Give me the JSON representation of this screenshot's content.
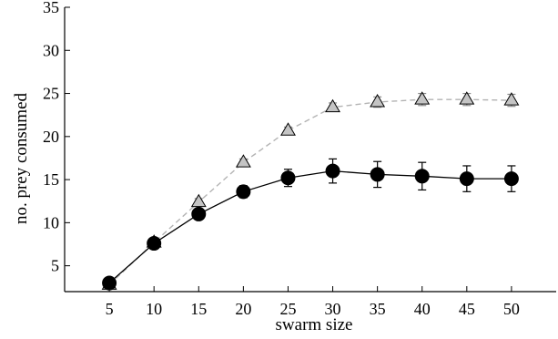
{
  "chart_data": {
    "type": "line",
    "title": "",
    "xlabel": "swarm size",
    "ylabel": "no. prey consumed",
    "x": [
      5,
      10,
      15,
      20,
      25,
      30,
      35,
      40,
      45,
      50
    ],
    "xticks": [
      "5",
      "10",
      "15",
      "20",
      "25",
      "30",
      "35",
      "40",
      "45",
      "50"
    ],
    "yticks": [
      "5",
      "10",
      "15",
      "20",
      "25",
      "30",
      "35"
    ],
    "xlim": [
      0,
      55
    ],
    "ylim": [
      2,
      35
    ],
    "grid": false,
    "legend": "none",
    "series": [
      {
        "marker": "triangle",
        "line_style": "dashed",
        "line_color": "#b3b3b3",
        "marker_fill": "#c4c4c4",
        "marker_stroke": "#000000",
        "values": [
          2.8,
          7.7,
          12.4,
          17.0,
          20.7,
          23.4,
          24.0,
          24.3,
          24.3,
          24.2
        ],
        "errors": [
          0.2,
          0.3,
          0.4,
          0.4,
          0.4,
          0.5,
          0.6,
          0.7,
          0.7,
          0.7
        ]
      },
      {
        "marker": "circle",
        "line_style": "solid",
        "line_color": "#000000",
        "marker_fill": "#000000",
        "marker_stroke": "#000000",
        "values": [
          3.0,
          7.6,
          11.0,
          13.6,
          15.2,
          16.0,
          15.6,
          15.4,
          15.1,
          15.1
        ],
        "errors": [
          0.2,
          0.3,
          0.4,
          0.7,
          1.0,
          1.4,
          1.5,
          1.6,
          1.5,
          1.5
        ]
      }
    ]
  }
}
